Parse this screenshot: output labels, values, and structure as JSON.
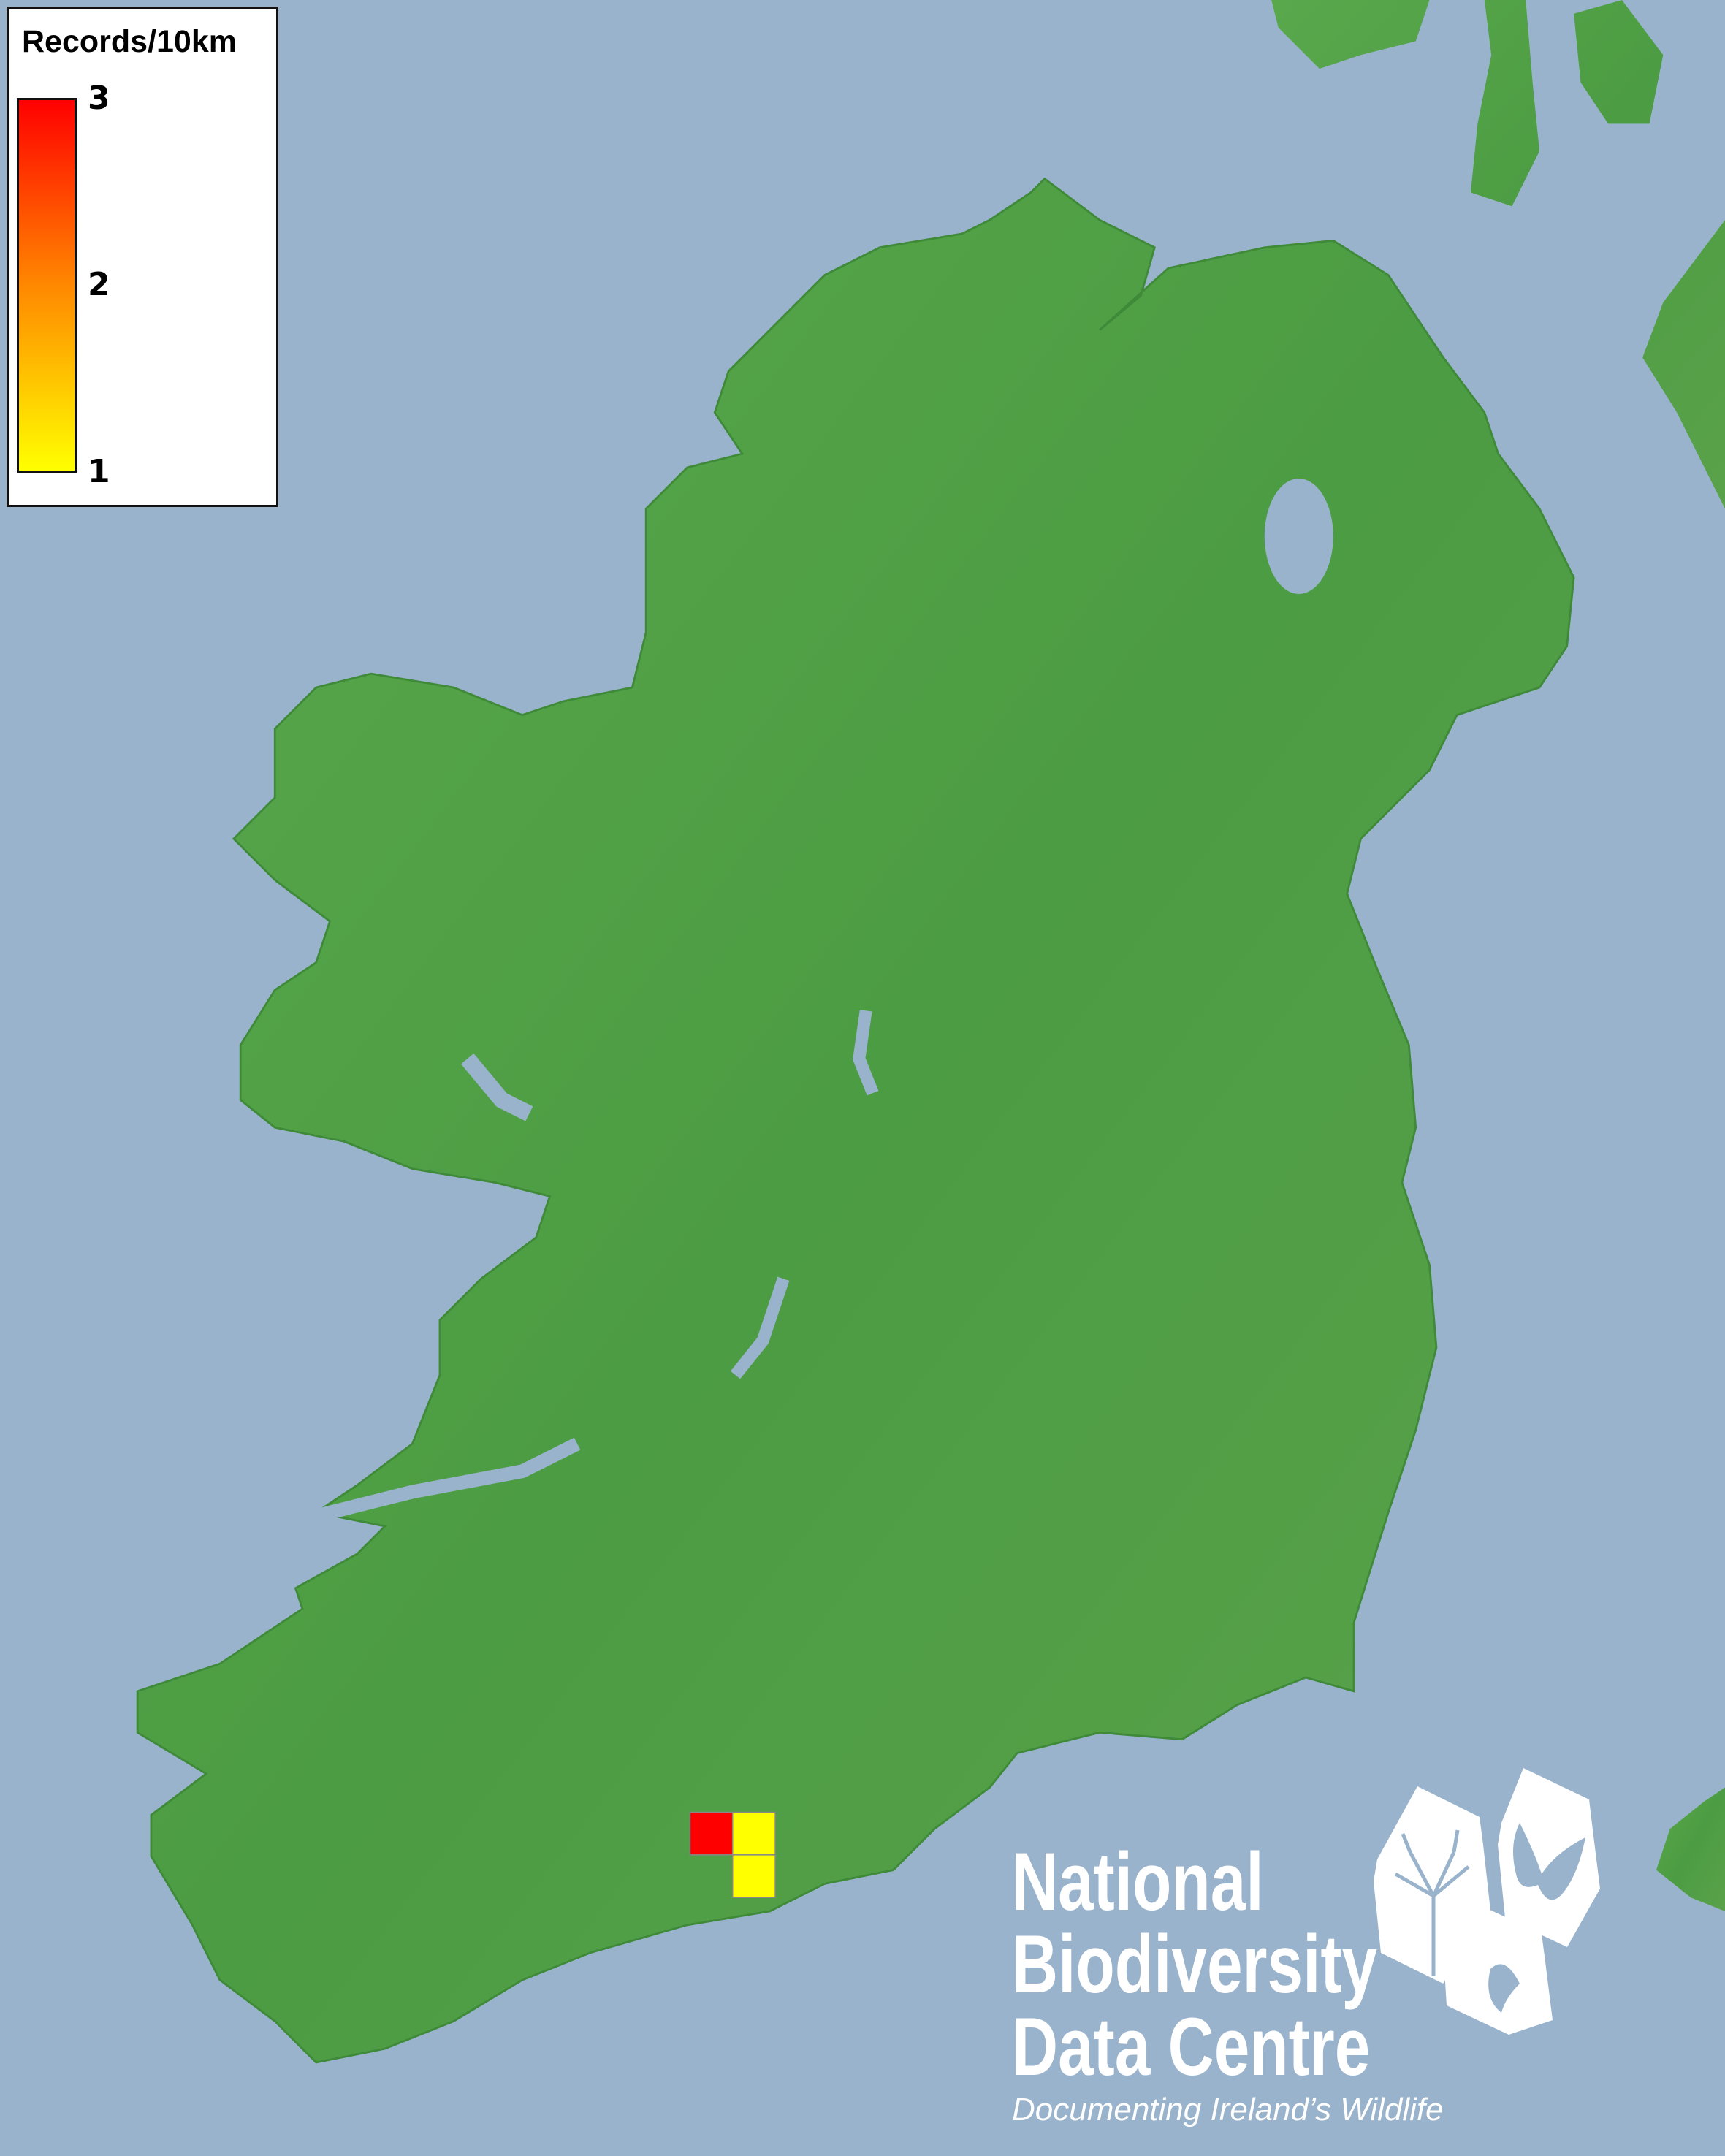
{
  "legend": {
    "title": "Records/10km",
    "ticks": [
      "3",
      "2",
      "1"
    ],
    "colors": {
      "max": "#ff0000",
      "mid": "#ff8800",
      "min": "#ffff00"
    }
  },
  "map": {
    "sea_color": "#99b3cc",
    "land_color": "#4fa046",
    "squares": [
      {
        "records": 3,
        "color": "#ff0000"
      },
      {
        "records": 1,
        "color": "#ffff00"
      },
      {
        "records": 1,
        "color": "#ffff00"
      }
    ]
  },
  "logo": {
    "line1": "National",
    "line2": "Biodiversity",
    "line3": "Data Centre",
    "tagline": "Documenting Ireland’s Wildlife",
    "icons": [
      "tree-icon",
      "butterfly-icon",
      "seahorse-icon"
    ]
  }
}
